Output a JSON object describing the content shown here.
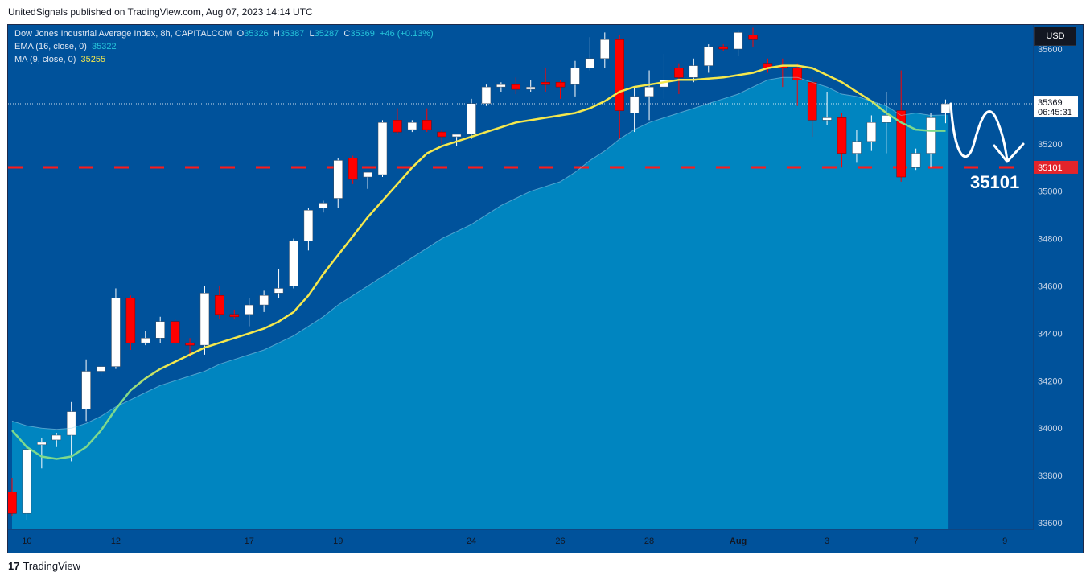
{
  "header": {
    "published_text": "UnitedSignals published on TradingView.com, Aug 07, 2023 14:14 UTC"
  },
  "legend": {
    "symbol_line": "Dow Jones Industrial Average Index, 8h, CAPITALCOM",
    "o_label": "O",
    "o_value": "35326",
    "h_label": "H",
    "h_value": "35387",
    "l_label": "L",
    "l_value": "35287",
    "c_label": "C",
    "c_value": "35369",
    "change": "+46 (+0.13%)",
    "ema_label": "EMA (16, close, 0)",
    "ema_value": "35322",
    "ma_label": "MA (9, close, 0)",
    "ma_value": "35255"
  },
  "currency_button": "USD",
  "footer": {
    "logo_glyph": "17",
    "brand": "TradingView"
  },
  "colors": {
    "background": "#00529b",
    "area": "#0085c0",
    "bull": "#ffffff",
    "bear": "#ff0000",
    "ma": "#f5e84c",
    "ema": "#7ed98c",
    "level": "#ff1a1a"
  },
  "chart_data": {
    "type": "candlestick",
    "ylim": [
      33560,
      35700
    ],
    "yticks": [
      "33600",
      "33800",
      "34000",
      "34200",
      "34400",
      "34600",
      "34800",
      "35000",
      "35200",
      "35600"
    ],
    "xticks": [
      {
        "label": "10",
        "index": 1
      },
      {
        "label": "12",
        "index": 7
      },
      {
        "label": "17",
        "index": 16
      },
      {
        "label": "19",
        "index": 22
      },
      {
        "label": "24",
        "index": 31
      },
      {
        "label": "26",
        "index": 37
      },
      {
        "label": "28",
        "index": 43
      },
      {
        "label": "Aug",
        "index": 49
      },
      {
        "label": "3",
        "index": 55
      },
      {
        "label": "7",
        "index": 61
      },
      {
        "label": "9",
        "index": 67
      }
    ],
    "last_price": {
      "value": 35369,
      "label": "35369",
      "countdown": "06:45:31"
    },
    "level": {
      "value": 35101,
      "label": "35101",
      "annotation": "35101"
    },
    "candles": [
      [
        33730,
        33790,
        33630,
        33640
      ],
      [
        33640,
        33920,
        33610,
        33910
      ],
      [
        33930,
        33960,
        33830,
        33940
      ],
      [
        33950,
        33980,
        33920,
        33970
      ],
      [
        33970,
        34110,
        33860,
        34070
      ],
      [
        34080,
        34290,
        34030,
        34240
      ],
      [
        34240,
        34270,
        34220,
        34260
      ],
      [
        34260,
        34590,
        34250,
        34550
      ],
      [
        34550,
        34560,
        34330,
        34360
      ],
      [
        34360,
        34410,
        34350,
        34380
      ],
      [
        34380,
        34470,
        34360,
        34450
      ],
      [
        34450,
        34460,
        34350,
        34360
      ],
      [
        34360,
        34380,
        34300,
        34350
      ],
      [
        34350,
        34600,
        34310,
        34570
      ],
      [
        34560,
        34600,
        34460,
        34480
      ],
      [
        34480,
        34500,
        34460,
        34470
      ],
      [
        34480,
        34550,
        34430,
        34520
      ],
      [
        34520,
        34580,
        34490,
        34560
      ],
      [
        34570,
        34670,
        34550,
        34590
      ],
      [
        34600,
        34800,
        34590,
        34790
      ],
      [
        34790,
        34930,
        34750,
        34920
      ],
      [
        34930,
        34960,
        34910,
        34950
      ],
      [
        34970,
        35140,
        34930,
        35130
      ],
      [
        35140,
        35150,
        35030,
        35050
      ],
      [
        35060,
        35080,
        35010,
        35080
      ],
      [
        35070,
        35300,
        35060,
        35290
      ],
      [
        35300,
        35350,
        35240,
        35250
      ],
      [
        35260,
        35300,
        35250,
        35290
      ],
      [
        35300,
        35350,
        35250,
        35260
      ],
      [
        35250,
        35260,
        35200,
        35230
      ],
      [
        35230,
        35240,
        35190,
        35240
      ],
      [
        35240,
        35390,
        35220,
        35370
      ],
      [
        35370,
        35450,
        35360,
        35440
      ],
      [
        35440,
        35460,
        35420,
        35450
      ],
      [
        35450,
        35480,
        35410,
        35430
      ],
      [
        35430,
        35470,
        35420,
        35440
      ],
      [
        35460,
        35520,
        35420,
        35450
      ],
      [
        35460,
        35470,
        35390,
        35440
      ],
      [
        35450,
        35550,
        35400,
        35520
      ],
      [
        35520,
        35650,
        35510,
        35560
      ],
      [
        35560,
        35670,
        35520,
        35640
      ],
      [
        35640,
        35660,
        35220,
        35340
      ],
      [
        35330,
        35440,
        35250,
        35400
      ],
      [
        35400,
        35510,
        35300,
        35440
      ],
      [
        35440,
        35580,
        35390,
        35470
      ],
      [
        35520,
        35540,
        35410,
        35480
      ],
      [
        35480,
        35560,
        35460,
        35530
      ],
      [
        35530,
        35620,
        35500,
        35610
      ],
      [
        35610,
        35620,
        35590,
        35600
      ],
      [
        35600,
        35680,
        35570,
        35670
      ],
      [
        35660,
        35690,
        35610,
        35640
      ],
      [
        35540,
        35560,
        35500,
        35520
      ],
      [
        35530,
        35560,
        35440,
        35520
      ],
      [
        35520,
        35540,
        35360,
        35470
      ],
      [
        35460,
        35480,
        35230,
        35300
      ],
      [
        35300,
        35420,
        35280,
        35310
      ],
      [
        35310,
        35330,
        35100,
        35160
      ],
      [
        35160,
        35260,
        35120,
        35210
      ],
      [
        35210,
        35320,
        35170,
        35290
      ],
      [
        35290,
        35420,
        35160,
        35320
      ],
      [
        35340,
        35510,
        35040,
        35060
      ],
      [
        35100,
        35180,
        35090,
        35160
      ],
      [
        35160,
        35330,
        35100,
        35310
      ],
      [
        35330,
        35387,
        35287,
        35369
      ]
    ],
    "ma": [
      33990,
      33920,
      33880,
      33870,
      33880,
      33920,
      33990,
      34080,
      34160,
      34210,
      34250,
      34280,
      34310,
      34340,
      34360,
      34380,
      34400,
      34420,
      34450,
      34490,
      34560,
      34650,
      34730,
      34810,
      34890,
      34960,
      35030,
      35100,
      35160,
      35190,
      35210,
      35230,
      35250,
      35270,
      35290,
      35300,
      35310,
      35320,
      35330,
      35350,
      35380,
      35420,
      35440,
      35450,
      35460,
      35470,
      35470,
      35475,
      35480,
      35490,
      35500,
      35520,
      35530,
      35530,
      35520,
      35490,
      35460,
      35420,
      35380,
      35330,
      35290,
      35260,
      35255,
      35255
    ],
    "ema": [
      34030,
      34010,
      34000,
      33995,
      34000,
      34020,
      34050,
      34090,
      34120,
      34150,
      34180,
      34200,
      34220,
      34240,
      34270,
      34290,
      34310,
      34330,
      34360,
      34390,
      34430,
      34470,
      34520,
      34560,
      34600,
      34640,
      34680,
      34720,
      34760,
      34800,
      34830,
      34860,
      34900,
      34940,
      34970,
      35000,
      35020,
      35040,
      35080,
      35130,
      35170,
      35220,
      35260,
      35290,
      35310,
      35330,
      35350,
      35370,
      35390,
      35410,
      35440,
      35470,
      35480,
      35480,
      35460,
      35440,
      35410,
      35400,
      35380,
      35360,
      35320,
      35330,
      35320,
      35322
    ]
  }
}
